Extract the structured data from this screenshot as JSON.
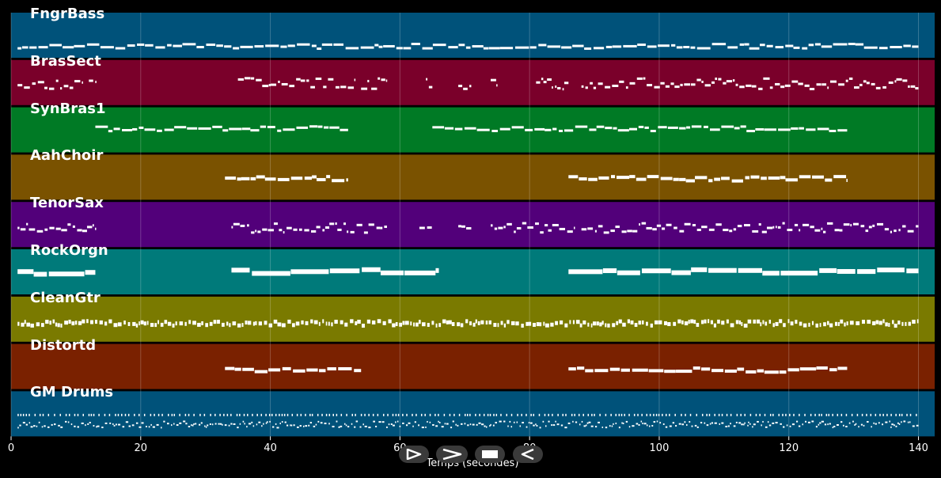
{
  "tracks": [
    {
      "name": "FngrBass",
      "color": "#00527a"
    },
    {
      "name": "BrasSect",
      "color": "#7a002a"
    },
    {
      "name": "SynBras1",
      "color": "#007a25"
    },
    {
      "name": "AahChoir",
      "color": "#7a5200"
    },
    {
      "name": "TenorSax",
      "color": "#52007a"
    },
    {
      "name": "RockOrgn",
      "color": "#007a7a"
    },
    {
      "name": "CleanGtr",
      "color": "#7a7a00"
    },
    {
      "name": "Distortd",
      "color": "#7a2100"
    },
    {
      "name": "GM Drums",
      "color": "#00527a"
    }
  ],
  "x_axis": {
    "label": "Temps (secondes)",
    "range": [
      0,
      142.5
    ],
    "ticks": [
      0,
      20,
      40,
      60,
      80,
      100,
      120,
      140
    ],
    "tick_labels": [
      "0",
      "20",
      "40",
      "60",
      "80",
      "100",
      "120",
      "140"
    ]
  },
  "transport": {
    "buttons": [
      {
        "name": "play-icon"
      },
      {
        "name": "fast-forward-icon"
      },
      {
        "name": "stop-icon"
      },
      {
        "name": "rewind-icon"
      }
    ]
  },
  "colors": {
    "background": "#000000",
    "note": "#ffffff",
    "grid": "#ffffff"
  }
}
